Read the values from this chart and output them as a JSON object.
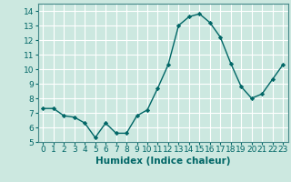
{
  "x": [
    0,
    1,
    2,
    3,
    4,
    5,
    6,
    7,
    8,
    9,
    10,
    11,
    12,
    13,
    14,
    15,
    16,
    17,
    18,
    19,
    20,
    21,
    22,
    23
  ],
  "y": [
    7.3,
    7.3,
    6.8,
    6.7,
    6.3,
    5.3,
    6.3,
    5.6,
    5.6,
    6.8,
    7.2,
    8.7,
    10.3,
    13.0,
    13.6,
    13.8,
    13.2,
    12.2,
    10.4,
    8.8,
    8.0,
    8.3,
    9.3,
    10.3
  ],
  "xlabel": "Humidex (Indice chaleur)",
  "xlim": [
    -0.5,
    23.5
  ],
  "ylim": [
    5,
    14.5
  ],
  "yticks": [
    5,
    6,
    7,
    8,
    9,
    10,
    11,
    12,
    13,
    14
  ],
  "xticks": [
    0,
    1,
    2,
    3,
    4,
    5,
    6,
    7,
    8,
    9,
    10,
    11,
    12,
    13,
    14,
    15,
    16,
    17,
    18,
    19,
    20,
    21,
    22,
    23
  ],
  "line_color": "#006666",
  "marker_color": "#006666",
  "bg_color": "#cce8e0",
  "grid_color": "#ffffff",
  "spine_color": "#448888",
  "tick_label_fontsize": 6.5,
  "xlabel_fontsize": 7.5
}
